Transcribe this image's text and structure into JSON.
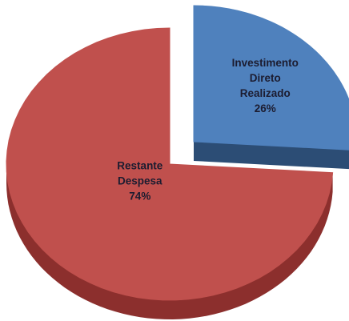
{
  "chart_data": {
    "type": "pie",
    "categories": [
      "Investimento Direto Realizado",
      "Restante Despesa"
    ],
    "values": [
      26,
      74
    ],
    "value_labels": [
      "26%",
      "74%"
    ],
    "colors": [
      "#4f81bd",
      "#c0504d"
    ],
    "side_colors": [
      "#2c4d75",
      "#8c2f2d"
    ]
  }
}
